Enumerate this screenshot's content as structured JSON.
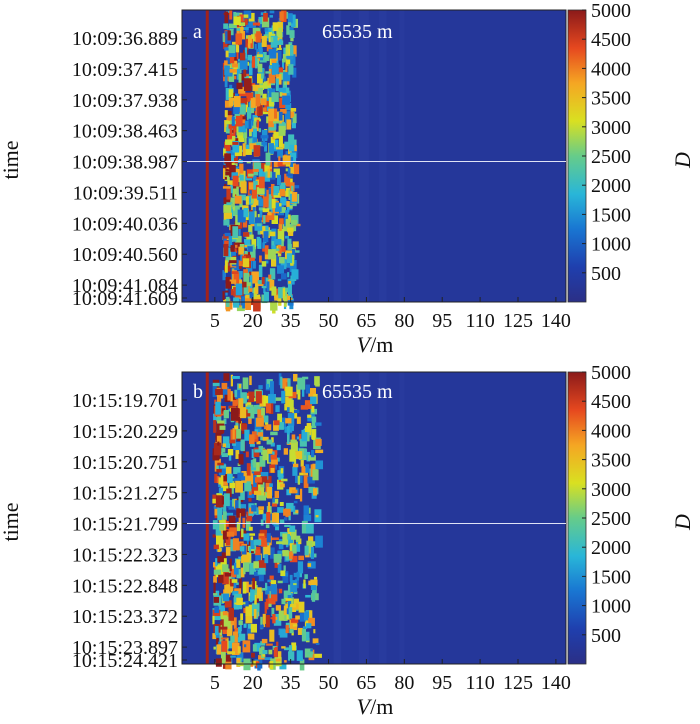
{
  "chart_data": [
    {
      "type": "heatmap",
      "panel_label": "a",
      "annotation": "65535 m",
      "xlabel_italic": "V",
      "xlabel_unit": "/m",
      "ylabel": "time",
      "x_tick_labels": [
        "5",
        "20",
        "35",
        "50",
        "65",
        "80",
        "95",
        "110",
        "125",
        "140"
      ],
      "x_ticks": [
        5,
        20,
        35,
        50,
        65,
        80,
        95,
        110,
        125,
        140
      ],
      "xlim": [
        -8,
        144
      ],
      "y_tick_labels": [
        "10:09:36.889",
        "10:09:37.415",
        "10:09:37.938",
        "10:09:38.463",
        "10:09:38.987",
        "10:09:39.511",
        "10:09:40.036",
        "10:09:40.560",
        "10:09:41.084",
        "10:09:41.609"
      ],
      "colorbar": {
        "label": "D",
        "ticks": [
          "500",
          "1000",
          "1500",
          "2000",
          "2500",
          "3000",
          "3500",
          "4000",
          "4500",
          "5000"
        ],
        "range": [
          0,
          5000
        ]
      },
      "background_value": 300,
      "vertical_line_x": 2,
      "horizontal_line_tick": "10:09:38.987",
      "active_band": [
        8,
        36
      ]
    },
    {
      "type": "heatmap",
      "panel_label": "b",
      "annotation": "65535 m",
      "xlabel_italic": "V",
      "xlabel_unit": "/m",
      "ylabel": "time",
      "x_tick_labels": [
        "5",
        "20",
        "35",
        "50",
        "65",
        "80",
        "95",
        "110",
        "125",
        "140"
      ],
      "x_ticks": [
        5,
        20,
        35,
        50,
        65,
        80,
        95,
        110,
        125,
        140
      ],
      "xlim": [
        -8,
        144
      ],
      "y_tick_labels": [
        "10:15:19.701",
        "10:15:20.229",
        "10:15:20.751",
        "10:15:21.275",
        "10:15:21.799",
        "10:15:22.323",
        "10:15:22.848",
        "10:15:23.372",
        "10:15:23.897",
        "10:15:24.421"
      ],
      "colorbar": {
        "label": "D",
        "ticks": [
          "500",
          "1000",
          "1500",
          "2000",
          "2500",
          "3000",
          "3500",
          "4000",
          "4500",
          "5000"
        ],
        "range": [
          0,
          5000
        ]
      },
      "background_value": 300,
      "vertical_line_x": 2,
      "horizontal_line_tick": "10:15:21.799",
      "active_band": [
        4,
        45
      ]
    }
  ]
}
